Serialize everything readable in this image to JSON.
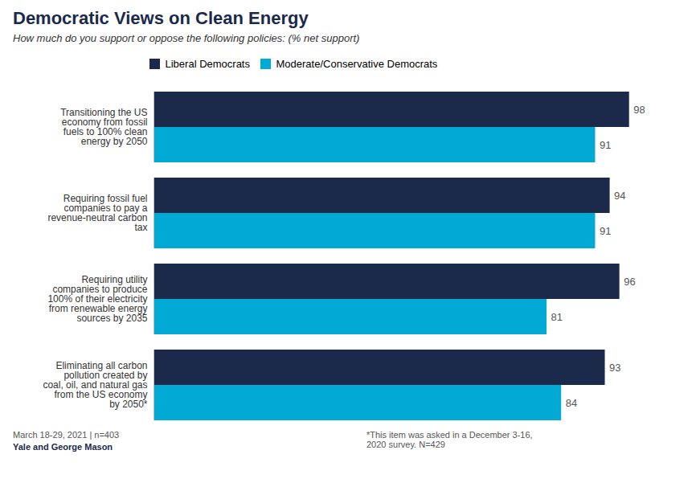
{
  "chart_data": {
    "type": "bar",
    "orientation": "horizontal",
    "title": "Democratic Views on Clean Energy",
    "subtitle": "How much do you support or oppose the following policies: (% net support)",
    "categories": [
      "Transitioning the US\neconomy from fossil\nfuels to 100% clean\nenergy by 2050",
      "Requiring fossil fuel\ncompanies to pay a\nrevenue-neutral carbon\ntax",
      "Requiring utility\ncompanies to produce\n100% of their electricity\nfrom renewable energy\nsources by 2035",
      "Eliminating all carbon\npollution created by\ncoal, oil, and natural gas\nfrom the US economy\nby 2050*"
    ],
    "series": [
      {
        "name": "Liberal Democrats",
        "color": "#1b2a4a",
        "values": [
          98,
          94,
          96,
          93
        ]
      },
      {
        "name": "Moderate/Conservative Democrats",
        "color": "#00aad4",
        "values": [
          91,
          91,
          81,
          84
        ]
      }
    ],
    "xlim": [
      0,
      105
    ],
    "xticks": [],
    "tick_labels": "y",
    "data_labels": true,
    "grid": false,
    "legend": "top",
    "annotations": [
      "March 18-29, 2021 | n=403",
      "Yale and George Mason",
      "*This item was asked in a December 3-16,\n2020 survey. N=429"
    ]
  }
}
